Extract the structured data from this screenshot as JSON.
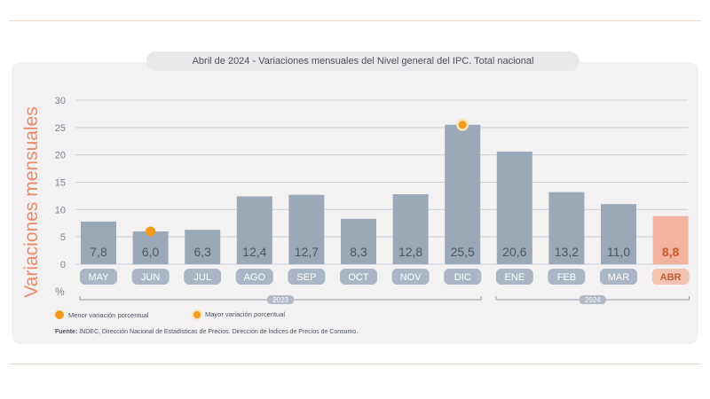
{
  "chart_data": {
    "type": "bar",
    "title": "Abril de 2024 - Variaciones mensuales del Nivel general del IPC. Total nacional",
    "ylabel": "Variaciones mensuales",
    "y_unit": "%",
    "ylim": [
      0,
      30
    ],
    "yticks": [
      "0",
      "5",
      "10",
      "15",
      "20",
      "25",
      "30"
    ],
    "grid": true,
    "categories": [
      "MAY",
      "JUN",
      "JUL",
      "AGO",
      "SEP",
      "OCT",
      "NOV",
      "DIC",
      "ENE",
      "FEB",
      "MAR",
      "ABR"
    ],
    "values": [
      7.8,
      6.0,
      6.3,
      12.4,
      12.7,
      8.3,
      12.8,
      25.5,
      20.6,
      13.2,
      11.0,
      8.8
    ],
    "value_labels": [
      "7,8",
      "6,0",
      "6,3",
      "12,4",
      "12,7",
      "8,3",
      "12,8",
      "25,5",
      "20,6",
      "13,2",
      "11,0",
      "8,8"
    ],
    "highlight_category": "ABR",
    "year_groups": [
      {
        "label": "2023",
        "from": "MAY",
        "to": "DIC"
      },
      {
        "label": "2024",
        "from": "ENE",
        "to": "ABR"
      }
    ],
    "markers": [
      {
        "category": "JUN",
        "kind": "min"
      },
      {
        "category": "DIC",
        "kind": "max"
      }
    ],
    "colors": {
      "bar": "#9aa8b8",
      "bar_highlight": "#f2b39e",
      "label": "#4f5566",
      "label_highlight": "#d2552a",
      "pill": "#aab5c5",
      "pill_highlight": "#f4c4b0",
      "pill_text": "#ffffff",
      "pill_text_highlight": "#c65a32",
      "marker": "#f39a1f",
      "marker_ring": "#fde3b8",
      "accent": "#ea8a6a"
    }
  },
  "legend": {
    "min_label": "Menor variación porcentual",
    "max_label": "Mayor variación porcentual"
  },
  "source": {
    "label": "Fuente:",
    "text": " INDEC, Dirección Nacional de Estadísticas de Precios. Dirección de Índices de Precios de Consumo."
  }
}
